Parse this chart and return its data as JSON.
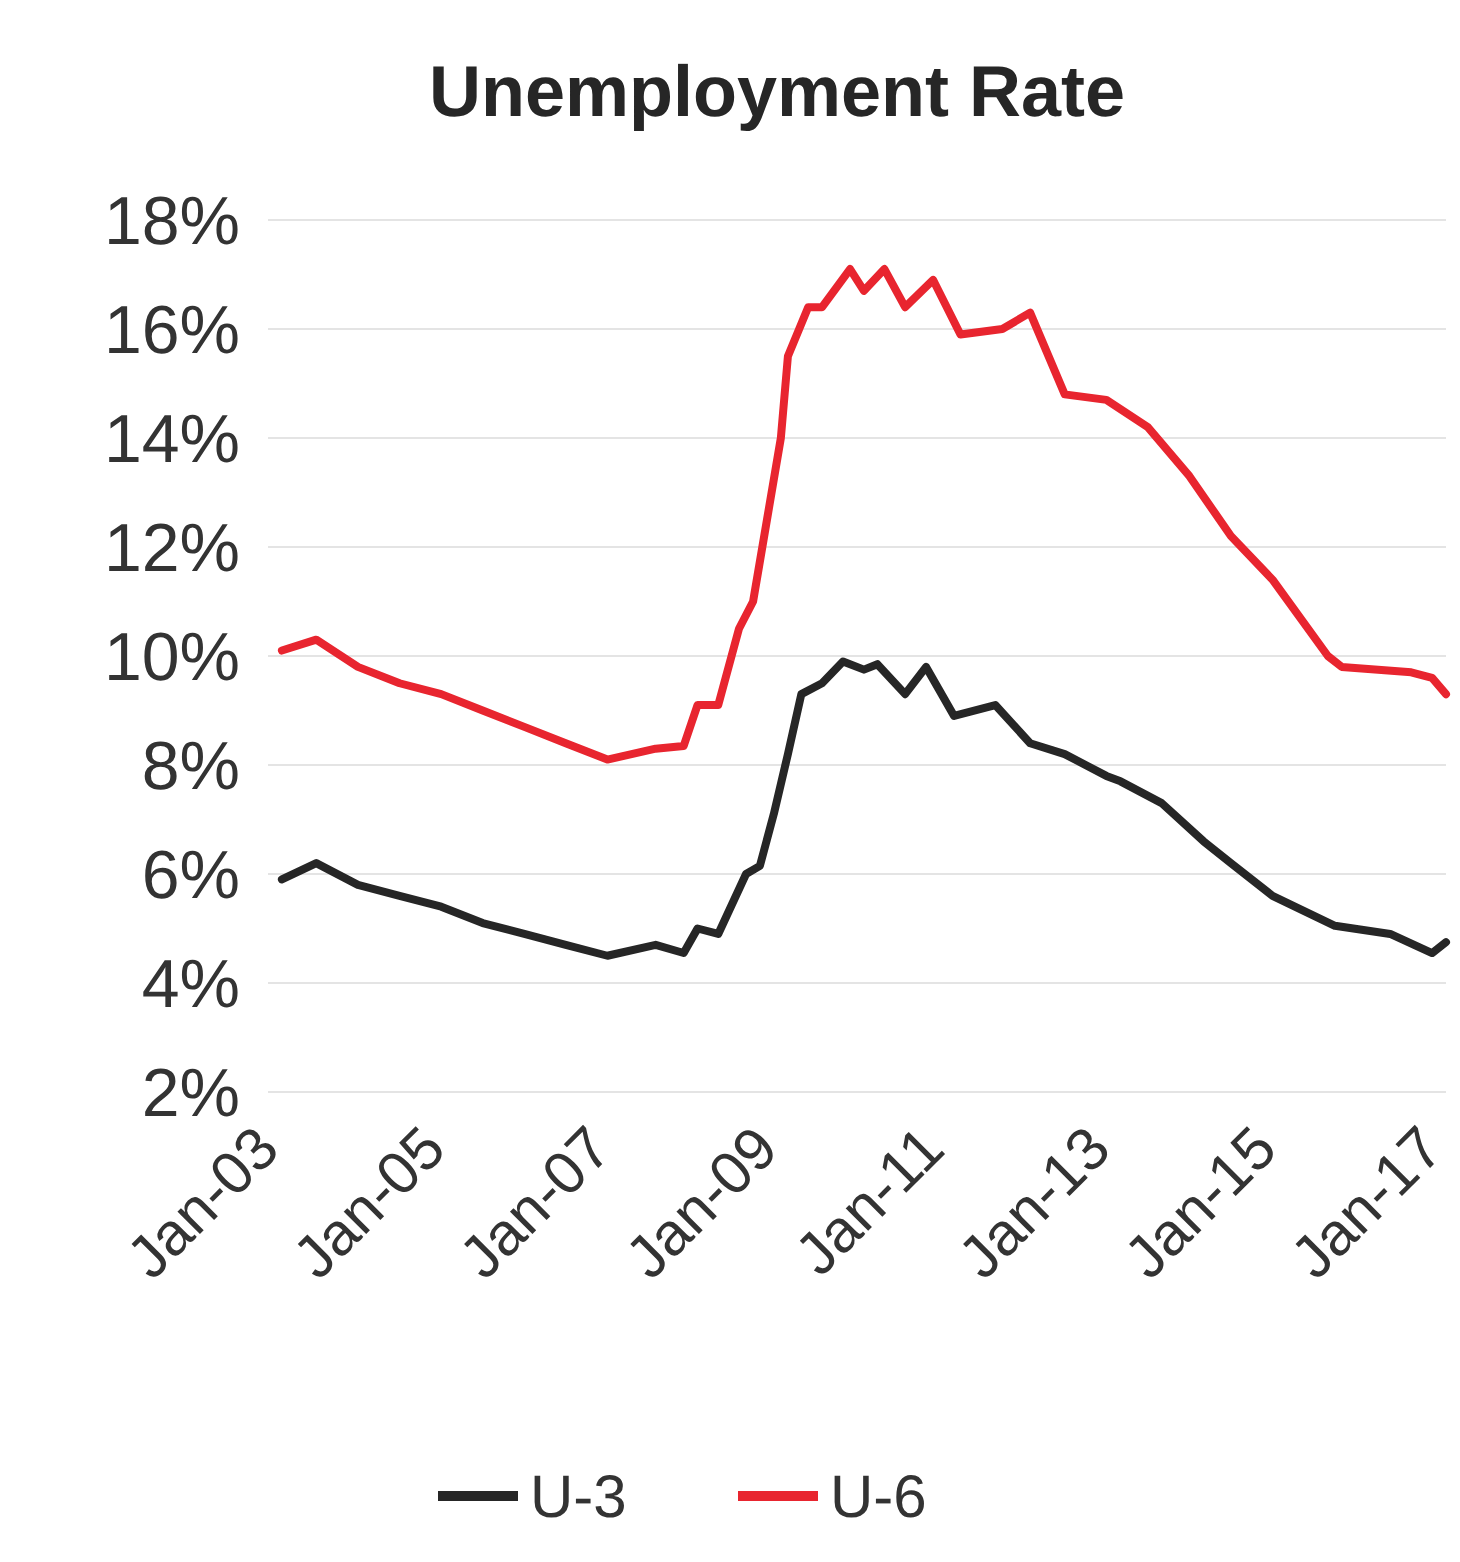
{
  "chart_data": {
    "type": "line",
    "title": "Unemployment Rate",
    "series": [
      {
        "name": "U-3",
        "color": "#262626",
        "x": [
          "2003-01",
          "2003-06",
          "2003-12",
          "2004-06",
          "2004-12",
          "2005-06",
          "2005-12",
          "2006-06",
          "2006-12",
          "2007-07",
          "2007-11",
          "2008-01",
          "2008-04",
          "2008-08",
          "2008-10",
          "2008-12",
          "2009-02",
          "2009-04",
          "2009-07",
          "2009-10",
          "2010-01",
          "2010-03",
          "2010-07",
          "2010-10",
          "2011-02",
          "2011-08",
          "2012-01",
          "2012-06",
          "2012-12",
          "2013-02",
          "2013-08",
          "2014-02",
          "2014-06",
          "2014-12",
          "2015-09",
          "2016-05",
          "2016-11",
          "2017-01"
        ],
        "values": [
          5.9,
          6.2,
          5.8,
          5.6,
          5.4,
          5.1,
          4.9,
          4.7,
          4.5,
          4.7,
          4.55,
          5.0,
          4.9,
          6.0,
          6.15,
          7.1,
          8.2,
          9.3,
          9.5,
          9.9,
          9.75,
          9.85,
          9.3,
          9.8,
          8.9,
          9.1,
          8.4,
          8.2,
          7.8,
          7.7,
          7.3,
          6.6,
          6.2,
          5.6,
          5.05,
          4.9,
          4.55,
          4.75
        ]
      },
      {
        "name": "U-6",
        "color": "#e8252f",
        "x": [
          "2003-01",
          "2003-06",
          "2003-12",
          "2004-06",
          "2004-12",
          "2005-06",
          "2005-12",
          "2006-06",
          "2006-12",
          "2007-07",
          "2007-11",
          "2008-01",
          "2008-04",
          "2008-07",
          "2008-09",
          "2008-11",
          "2009-01",
          "2009-02",
          "2009-05",
          "2009-07",
          "2009-11",
          "2010-01",
          "2010-04",
          "2010-07",
          "2010-11",
          "2011-03",
          "2011-09",
          "2012-01",
          "2012-06",
          "2012-12",
          "2013-06",
          "2013-12",
          "2014-06",
          "2014-12",
          "2015-08",
          "2015-10",
          "2016-08",
          "2016-11",
          "2017-01"
        ],
        "values": [
          10.1,
          10.3,
          9.8,
          9.5,
          9.3,
          9.0,
          8.7,
          8.4,
          8.1,
          8.3,
          8.35,
          9.1,
          9.1,
          10.5,
          11.0,
          12.5,
          14.0,
          15.5,
          16.4,
          16.4,
          17.1,
          16.7,
          17.1,
          16.4,
          16.9,
          15.9,
          16.0,
          16.3,
          14.8,
          14.7,
          14.2,
          13.3,
          12.2,
          11.4,
          10.0,
          9.8,
          9.7,
          9.6,
          9.3
        ]
      }
    ],
    "xlim": [
      "2002-11",
      "2017-01"
    ],
    "xticks": [
      {
        "value": "2003-01",
        "label": "Jan-03"
      },
      {
        "value": "2005-01",
        "label": "Jan-05"
      },
      {
        "value": "2007-01",
        "label": "Jan-07"
      },
      {
        "value": "2009-01",
        "label": "Jan-09"
      },
      {
        "value": "2011-01",
        "label": "Jan-11"
      },
      {
        "value": "2013-01",
        "label": "Jan-13"
      },
      {
        "value": "2015-01",
        "label": "Jan-15"
      },
      {
        "value": "2017-01",
        "label": "Jan-17"
      }
    ],
    "ylim": [
      2,
      18
    ],
    "yticks": [
      {
        "value": 2,
        "label": "2%"
      },
      {
        "value": 4,
        "label": "4%"
      },
      {
        "value": 6,
        "label": "6%"
      },
      {
        "value": 8,
        "label": "8%"
      },
      {
        "value": 10,
        "label": "10%"
      },
      {
        "value": 12,
        "label": "12%"
      },
      {
        "value": 14,
        "label": "14%"
      },
      {
        "value": 16,
        "label": "16%"
      },
      {
        "value": 18,
        "label": "18%"
      }
    ],
    "grid": "y",
    "legend": "bottom",
    "line_style": "solid"
  }
}
